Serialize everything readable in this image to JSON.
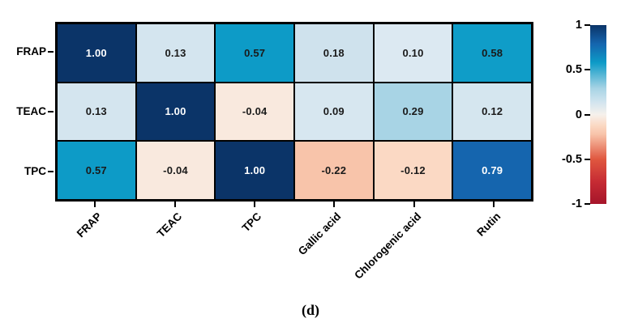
{
  "caption": "(d)",
  "colors": {
    "background": "#ffffff",
    "grid_line": "#000000",
    "dark_text": "#1a1a1a",
    "light_text": "#ffffff"
  },
  "chart_data": {
    "type": "heatmap",
    "title": "",
    "xlabel": "",
    "ylabel": "",
    "rows": [
      "FRAP",
      "TEAC",
      "TPC"
    ],
    "columns": [
      "FRAP",
      "TEAC",
      "TPC",
      "Gallic acid",
      "Chlorogenic acid",
      "Rutin"
    ],
    "values": [
      [
        1.0,
        0.13,
        0.57,
        0.18,
        0.1,
        0.58
      ],
      [
        0.13,
        1.0,
        -0.04,
        0.09,
        0.29,
        0.12
      ],
      [
        0.57,
        -0.04,
        1.0,
        -0.22,
        -0.12,
        0.79
      ]
    ],
    "cell_labels": [
      [
        "1.00",
        "0.13",
        "0.57",
        "0.18",
        "0.10",
        "0.58"
      ],
      [
        "0.13",
        "1.00",
        "-0.04",
        "0.09",
        "0.29",
        "0.12"
      ],
      [
        "0.57",
        "-0.04",
        "1.00",
        "-0.22",
        "-0.12",
        "0.79"
      ]
    ],
    "cell_colors": [
      [
        "#0b3468",
        "#d4e5ef",
        "#0d9bc7",
        "#cfe2ed",
        "#dce9f2",
        "#0f9dc8"
      ],
      [
        "#d4e5ef",
        "#0b3468",
        "#f9e9de",
        "#d7e7f0",
        "#a8d4e5",
        "#d5e6ef"
      ],
      [
        "#0d9bc7",
        "#f9e9de",
        "#0b3468",
        "#f8c4aa",
        "#fbd9c4",
        "#1565ae"
      ]
    ],
    "cell_text_colors": [
      [
        "#ffffff",
        "#1a1a1a",
        "#1a1a1a",
        "#1a1a1a",
        "#1a1a1a",
        "#1a1a1a"
      ],
      [
        "#1a1a1a",
        "#ffffff",
        "#1a1a1a",
        "#1a1a1a",
        "#1a1a1a",
        "#1a1a1a"
      ],
      [
        "#1a1a1a",
        "#1a1a1a",
        "#ffffff",
        "#1a1a1a",
        "#1a1a1a",
        "#ffffff"
      ]
    ],
    "grid": true,
    "legend_position": "right",
    "colorbar": {
      "min": -1,
      "max": 1,
      "tick_labels": [
        "1",
        "0.5",
        "0",
        "-0.5",
        "-1"
      ],
      "tick_values": [
        1,
        0.5,
        0,
        -0.5,
        -1
      ],
      "gradient_stops": [
        {
          "pos": 0,
          "color": "#0b3468"
        },
        {
          "pos": 10.5,
          "color": "#1565ae"
        },
        {
          "pos": 21,
          "color": "#0d9bc7"
        },
        {
          "pos": 35.5,
          "color": "#a8d4e5"
        },
        {
          "pos": 43.5,
          "color": "#d4e5ef"
        },
        {
          "pos": 50,
          "color": "#f6f1ec"
        },
        {
          "pos": 56,
          "color": "#fbd9c4"
        },
        {
          "pos": 61,
          "color": "#f8c4aa"
        },
        {
          "pos": 75,
          "color": "#e0573f"
        },
        {
          "pos": 88,
          "color": "#c52a33"
        },
        {
          "pos": 100,
          "color": "#a5152a"
        }
      ]
    }
  }
}
